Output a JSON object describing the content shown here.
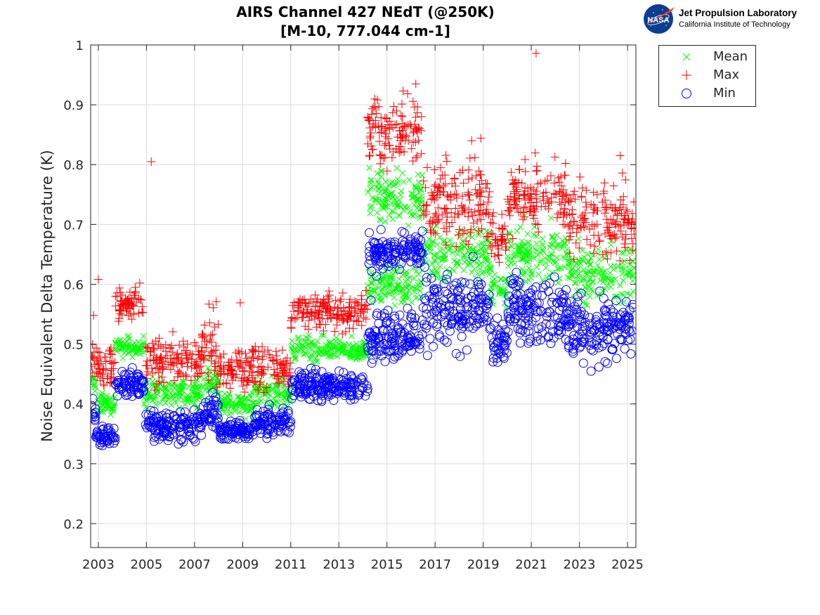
{
  "chart_data": {
    "type": "scatter",
    "title": "AIRS Channel 427 NEdT (@250K)",
    "subtitle": "[M-10, 777.044 cm-1]",
    "xlabel": "",
    "ylabel": "Noise Equivalent Delta Temperature (K)",
    "xlim": [
      2002.68,
      2025.35
    ],
    "ylim": [
      0.16,
      1.0
    ],
    "xticks": [
      2003,
      2005,
      2007,
      2009,
      2011,
      2013,
      2015,
      2017,
      2019,
      2021,
      2023,
      2025
    ],
    "xtick_labels": [
      "2003",
      "2005",
      "2007",
      "2009",
      "2011",
      "2013",
      "2015",
      "2017",
      "2019",
      "2021",
      "2023",
      "2025"
    ],
    "yticks": [
      0.2,
      0.3,
      0.4,
      0.5,
      0.6,
      0.7,
      0.8,
      0.9,
      1.0
    ],
    "ytick_labels": [
      "0.2",
      "0.3",
      "0.4",
      "0.5",
      "0.6",
      "0.7",
      "0.8",
      "0.9",
      "1"
    ],
    "grid": true,
    "legend_position": "outside-top-right",
    "series": [
      {
        "name": "Mean",
        "marker": "x",
        "color": "#00ff00",
        "segments": [
          {
            "x0": 2002.7,
            "x1": 2002.9,
            "level": 0.435,
            "spread": 0.008
          },
          {
            "x0": 2002.9,
            "x1": 2003.7,
            "level": 0.4,
            "spread": 0.008
          },
          {
            "x0": 2003.7,
            "x1": 2004.9,
            "level": 0.495,
            "spread": 0.008
          },
          {
            "x0": 2004.9,
            "x1": 2007.3,
            "level": 0.42,
            "spread": 0.012
          },
          {
            "x0": 2007.3,
            "x1": 2008.0,
            "level": 0.435,
            "spread": 0.015
          },
          {
            "x0": 2008.0,
            "x1": 2009.5,
            "level": 0.4,
            "spread": 0.01
          },
          {
            "x0": 2009.5,
            "x1": 2011.0,
            "level": 0.42,
            "spread": 0.012
          },
          {
            "x0": 2011.0,
            "x1": 2014.2,
            "level": 0.49,
            "spread": 0.01
          },
          {
            "x0": 2014.2,
            "x1": 2016.5,
            "level": 0.745,
            "spread": 0.02
          },
          {
            "x0": 2014.2,
            "x1": 2016.5,
            "level": 0.6,
            "spread": 0.015
          },
          {
            "x0": 2016.5,
            "x1": 2019.3,
            "level": 0.65,
            "spread": 0.025
          },
          {
            "x0": 2019.3,
            "x1": 2020.0,
            "level": 0.59,
            "spread": 0.015
          },
          {
            "x0": 2020.0,
            "x1": 2022.5,
            "level": 0.65,
            "spread": 0.022
          },
          {
            "x0": 2022.5,
            "x1": 2025.3,
            "level": 0.62,
            "spread": 0.022
          }
        ]
      },
      {
        "name": "Max",
        "marker": "+",
        "color": "#ff0000",
        "segments": [
          {
            "x0": 2002.7,
            "x1": 2003.7,
            "level": 0.465,
            "spread": 0.018
          },
          {
            "x0": 2003.7,
            "x1": 2004.9,
            "level": 0.565,
            "spread": 0.015
          },
          {
            "x0": 2004.9,
            "x1": 2007.3,
            "level": 0.47,
            "spread": 0.018
          },
          {
            "x0": 2007.3,
            "x1": 2008.0,
            "level": 0.49,
            "spread": 0.025
          },
          {
            "x0": 2008.0,
            "x1": 2011.0,
            "level": 0.46,
            "spread": 0.018
          },
          {
            "x0": 2011.0,
            "x1": 2014.2,
            "level": 0.555,
            "spread": 0.015
          },
          {
            "x0": 2014.2,
            "x1": 2016.5,
            "level": 0.855,
            "spread": 0.025
          },
          {
            "x0": 2016.5,
            "x1": 2019.3,
            "level": 0.74,
            "spread": 0.035
          },
          {
            "x0": 2019.3,
            "x1": 2020.0,
            "level": 0.675,
            "spread": 0.02
          },
          {
            "x0": 2020.0,
            "x1": 2022.5,
            "level": 0.745,
            "spread": 0.03
          },
          {
            "x0": 2022.5,
            "x1": 2025.3,
            "level": 0.705,
            "spread": 0.03
          }
        ],
        "outliers": [
          {
            "x": 2003.0,
            "y": 0.608
          },
          {
            "x": 2002.8,
            "y": 0.548
          },
          {
            "x": 2005.2,
            "y": 0.805
          },
          {
            "x": 2007.6,
            "y": 0.567
          },
          {
            "x": 2007.9,
            "y": 0.571
          },
          {
            "x": 2008.9,
            "y": 0.569
          },
          {
            "x": 2014.6,
            "y": 0.908
          },
          {
            "x": 2016.2,
            "y": 0.935
          },
          {
            "x": 2018.9,
            "y": 0.844
          },
          {
            "x": 2021.2,
            "y": 0.986
          },
          {
            "x": 2024.7,
            "y": 0.815
          }
        ]
      },
      {
        "name": "Min",
        "marker": "o",
        "color": "#0000ff",
        "segments": [
          {
            "x0": 2002.7,
            "x1": 2002.9,
            "level": 0.385,
            "spread": 0.008
          },
          {
            "x0": 2002.9,
            "x1": 2003.7,
            "level": 0.345,
            "spread": 0.008
          },
          {
            "x0": 2003.7,
            "x1": 2004.9,
            "level": 0.435,
            "spread": 0.012
          },
          {
            "x0": 2004.9,
            "x1": 2007.3,
            "level": 0.365,
            "spread": 0.012
          },
          {
            "x0": 2007.3,
            "x1": 2008.0,
            "level": 0.385,
            "spread": 0.015
          },
          {
            "x0": 2008.0,
            "x1": 2009.5,
            "level": 0.355,
            "spread": 0.008
          },
          {
            "x0": 2009.5,
            "x1": 2011.0,
            "level": 0.37,
            "spread": 0.012
          },
          {
            "x0": 2011.0,
            "x1": 2014.2,
            "level": 0.43,
            "spread": 0.012
          },
          {
            "x0": 2014.2,
            "x1": 2016.5,
            "level": 0.655,
            "spread": 0.015
          },
          {
            "x0": 2014.2,
            "x1": 2016.5,
            "level": 0.515,
            "spread": 0.02
          },
          {
            "x0": 2016.5,
            "x1": 2019.3,
            "level": 0.555,
            "spread": 0.03
          },
          {
            "x0": 2019.3,
            "x1": 2020.0,
            "level": 0.505,
            "spread": 0.018
          },
          {
            "x0": 2020.0,
            "x1": 2022.5,
            "level": 0.555,
            "spread": 0.028
          },
          {
            "x0": 2022.5,
            "x1": 2025.3,
            "level": 0.525,
            "spread": 0.028
          }
        ]
      }
    ]
  },
  "logo": {
    "badge": "NASA",
    "line1": "Jet Propulsion Laboratory",
    "line2": "California Institute of Technology"
  },
  "legend": {
    "items": [
      {
        "label": "Mean",
        "marker": "x",
        "color": "#00ff00"
      },
      {
        "label": "Max",
        "marker": "+",
        "color": "#ff0000"
      },
      {
        "label": "Min",
        "marker": "o",
        "color": "#0000ff"
      }
    ]
  }
}
